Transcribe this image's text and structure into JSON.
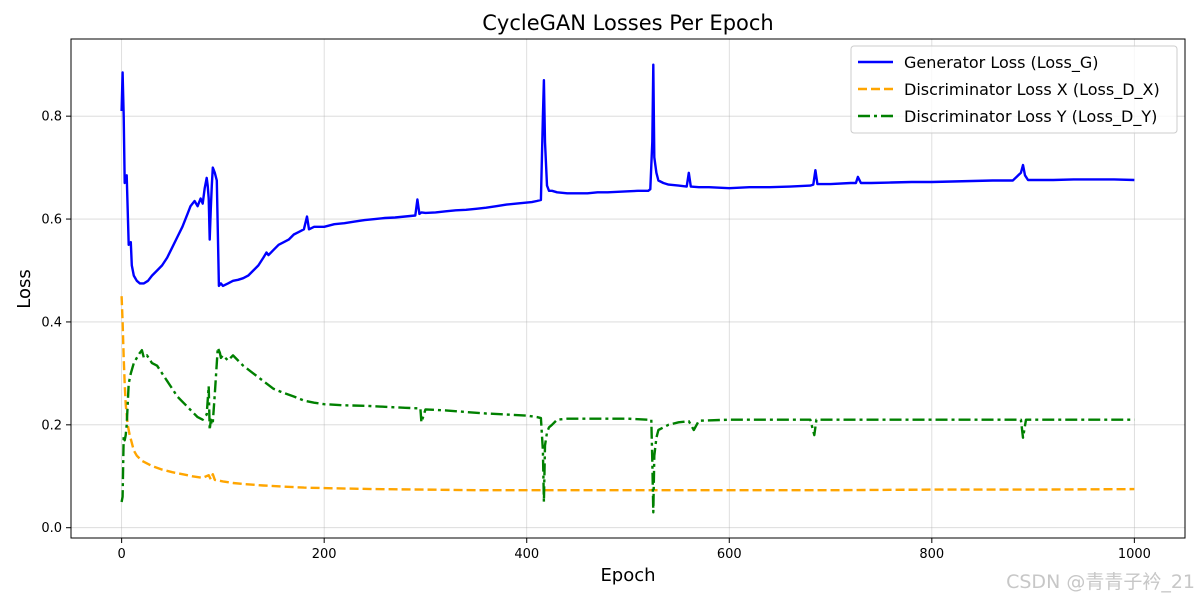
{
  "chart_data": {
    "type": "line",
    "title": "CycleGAN Losses Per Epoch",
    "xlabel": "Epoch",
    "ylabel": "Loss",
    "xlim": [
      -50,
      1050
    ],
    "ylim": [
      -0.02,
      0.95
    ],
    "xticks": [
      0,
      200,
      400,
      600,
      800,
      1000
    ],
    "yticks": [
      0.0,
      0.2,
      0.4,
      0.6,
      0.8
    ],
    "xtick_labels": [
      "0",
      "200",
      "400",
      "600",
      "800",
      "1000"
    ],
    "ytick_labels": [
      "0.0",
      "0.2",
      "0.4",
      "0.6",
      "0.8"
    ],
    "grid": true,
    "legend_position": "top-right",
    "series": [
      {
        "name": "Generator Loss (Loss_G)",
        "color": "#0000ff",
        "style": "solid",
        "x": [
          0,
          1,
          2,
          3,
          5,
          7,
          9,
          10,
          12,
          15,
          18,
          22,
          26,
          30,
          35,
          40,
          45,
          50,
          55,
          60,
          65,
          68,
          70,
          72,
          75,
          78,
          80,
          82,
          84,
          85,
          86,
          87,
          88,
          89,
          90,
          92,
          94,
          96,
          98,
          100,
          105,
          110,
          115,
          120,
          125,
          130,
          135,
          140,
          143,
          145,
          150,
          155,
          160,
          165,
          170,
          175,
          180,
          183,
          185,
          190,
          200,
          210,
          220,
          230,
          240,
          250,
          260,
          270,
          280,
          290,
          292,
          294,
          296,
          300,
          310,
          320,
          330,
          340,
          350,
          360,
          370,
          380,
          390,
          400,
          405,
          410,
          414,
          416,
          417,
          418,
          420,
          422,
          425,
          430,
          440,
          450,
          460,
          470,
          480,
          490,
          500,
          510,
          520,
          522,
          524,
          525,
          526,
          528,
          530,
          535,
          540,
          550,
          558,
          560,
          562,
          570,
          580,
          590,
          600,
          620,
          640,
          660,
          680,
          683,
          685,
          687,
          690,
          700,
          720,
          725,
          727,
          730,
          740,
          760,
          780,
          800,
          820,
          840,
          860,
          880,
          888,
          890,
          892,
          895,
          900,
          920,
          940,
          960,
          980,
          1000
        ],
        "values": [
          0.81,
          0.885,
          0.8,
          0.67,
          0.685,
          0.55,
          0.555,
          0.51,
          0.49,
          0.48,
          0.475,
          0.475,
          0.48,
          0.49,
          0.5,
          0.51,
          0.525,
          0.545,
          0.565,
          0.585,
          0.61,
          0.625,
          0.63,
          0.635,
          0.625,
          0.64,
          0.63,
          0.66,
          0.68,
          0.665,
          0.64,
          0.56,
          0.62,
          0.665,
          0.7,
          0.69,
          0.675,
          0.47,
          0.475,
          0.47,
          0.475,
          0.48,
          0.482,
          0.485,
          0.49,
          0.5,
          0.51,
          0.525,
          0.535,
          0.53,
          0.54,
          0.55,
          0.555,
          0.56,
          0.57,
          0.575,
          0.58,
          0.605,
          0.58,
          0.585,
          0.585,
          0.59,
          0.592,
          0.595,
          0.598,
          0.6,
          0.602,
          0.603,
          0.605,
          0.607,
          0.638,
          0.61,
          0.613,
          0.612,
          0.613,
          0.615,
          0.617,
          0.618,
          0.62,
          0.622,
          0.625,
          0.628,
          0.63,
          0.632,
          0.633,
          0.635,
          0.637,
          0.8,
          0.87,
          0.75,
          0.665,
          0.655,
          0.655,
          0.652,
          0.65,
          0.65,
          0.65,
          0.652,
          0.652,
          0.653,
          0.654,
          0.655,
          0.655,
          0.658,
          0.75,
          0.9,
          0.72,
          0.69,
          0.675,
          0.67,
          0.667,
          0.665,
          0.663,
          0.69,
          0.663,
          0.662,
          0.662,
          0.661,
          0.66,
          0.662,
          0.662,
          0.663,
          0.665,
          0.667,
          0.695,
          0.668,
          0.668,
          0.668,
          0.67,
          0.67,
          0.682,
          0.67,
          0.67,
          0.671,
          0.672,
          0.672,
          0.673,
          0.674,
          0.675,
          0.675,
          0.69,
          0.705,
          0.685,
          0.676,
          0.676,
          0.676,
          0.677,
          0.677,
          0.677,
          0.676
        ]
      },
      {
        "name": "Discriminator Loss X (Loss_D_X)",
        "color": "#ffa500",
        "style": "dashed",
        "x": [
          0,
          1,
          2,
          3,
          4,
          5,
          6,
          8,
          10,
          12,
          15,
          20,
          25,
          30,
          40,
          50,
          60,
          70,
          80,
          86,
          88,
          90,
          92,
          100,
          110,
          120,
          140,
          160,
          180,
          200,
          250,
          300,
          350,
          400,
          450,
          500,
          550,
          600,
          700,
          800,
          900,
          1000
        ],
        "values": [
          0.45,
          0.4,
          0.33,
          0.28,
          0.24,
          0.22,
          0.2,
          0.18,
          0.165,
          0.15,
          0.14,
          0.13,
          0.125,
          0.12,
          0.113,
          0.108,
          0.104,
          0.1,
          0.097,
          0.102,
          0.094,
          0.104,
          0.093,
          0.09,
          0.087,
          0.085,
          0.082,
          0.08,
          0.078,
          0.077,
          0.075,
          0.074,
          0.073,
          0.073,
          0.073,
          0.073,
          0.073,
          0.073,
          0.073,
          0.074,
          0.074,
          0.075
        ]
      },
      {
        "name": "Discriminator Loss Y (Loss_D_Y)",
        "color": "#008000",
        "style": "dashdot",
        "x": [
          0,
          1,
          2,
          3,
          4,
          5,
          7,
          9,
          12,
          15,
          18,
          20,
          22,
          25,
          30,
          35,
          40,
          45,
          50,
          55,
          60,
          65,
          70,
          75,
          80,
          84,
          86,
          87,
          88,
          89,
          90,
          92,
          95,
          97,
          98,
          100,
          105,
          110,
          120,
          130,
          140,
          150,
          160,
          170,
          180,
          190,
          200,
          220,
          240,
          260,
          280,
          295,
          296,
          300,
          320,
          340,
          360,
          380,
          400,
          410,
          414,
          416,
          417,
          418,
          420,
          422,
          425,
          430,
          440,
          460,
          480,
          500,
          520,
          523,
          524,
          525,
          526,
          528,
          530,
          535,
          540,
          550,
          560,
          565,
          570,
          600,
          650,
          680,
          684,
          686,
          690,
          700,
          750,
          800,
          850,
          880,
          888,
          890,
          893,
          900,
          950,
          1000
        ],
        "values": [
          0.05,
          0.06,
          0.18,
          0.17,
          0.18,
          0.2,
          0.28,
          0.3,
          0.32,
          0.33,
          0.34,
          0.345,
          0.33,
          0.335,
          0.32,
          0.315,
          0.3,
          0.285,
          0.27,
          0.255,
          0.245,
          0.235,
          0.225,
          0.215,
          0.21,
          0.22,
          0.275,
          0.19,
          0.21,
          0.2,
          0.205,
          0.26,
          0.35,
          0.34,
          0.33,
          0.335,
          0.325,
          0.335,
          0.315,
          0.3,
          0.285,
          0.27,
          0.262,
          0.255,
          0.247,
          0.243,
          0.24,
          0.238,
          0.237,
          0.235,
          0.233,
          0.232,
          0.205,
          0.23,
          0.228,
          0.225,
          0.222,
          0.22,
          0.218,
          0.215,
          0.213,
          0.15,
          0.05,
          0.16,
          0.185,
          0.195,
          0.2,
          0.21,
          0.212,
          0.212,
          0.212,
          0.212,
          0.21,
          0.21,
          0.13,
          0.03,
          0.14,
          0.175,
          0.19,
          0.195,
          0.2,
          0.205,
          0.207,
          0.19,
          0.208,
          0.21,
          0.21,
          0.21,
          0.18,
          0.21,
          0.21,
          0.21,
          0.21,
          0.21,
          0.21,
          0.21,
          0.21,
          0.175,
          0.21,
          0.21,
          0.21,
          0.21
        ]
      }
    ]
  },
  "watermark": "CSDN @青青子衿_21"
}
